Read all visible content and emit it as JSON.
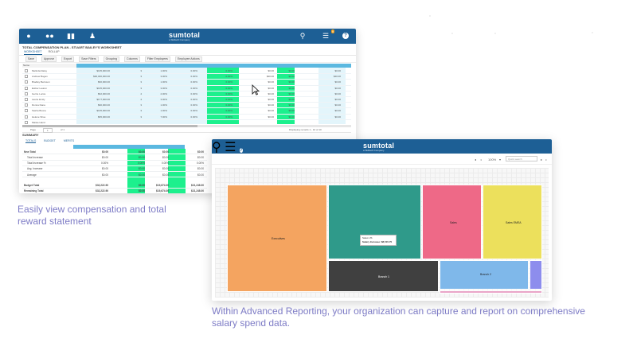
{
  "colors": {
    "brand_bar": "#1d5f95",
    "header_cyan": "#5bb8e0",
    "highlight_green": "#1cf08d",
    "caption": "#7e7cc6"
  },
  "worksheet": {
    "logo": "sumtotal",
    "logo_tagline": "a Skillsoft Company",
    "badge": "9",
    "nav_icons": [
      "person-icon",
      "group-icon",
      "books-icon",
      "person-gear-icon"
    ],
    "right_icons": [
      "search-icon",
      "messages-icon",
      "help-icon"
    ],
    "plan_title": "TOTAL COMPENSATION PLAN - STUART BAILEY'S WORKSHEET",
    "subtabs": [
      "WORKSHEET",
      "ROLLUP"
    ],
    "toolbar": [
      "Save",
      "Approve",
      "Export",
      "Save Filters",
      "Grouping",
      "Columns",
      "Filter Employees",
      "Employee Actions"
    ],
    "name_header": "Name",
    "rows": [
      {
        "name": "Melinda Daley",
        "salary": "$135,000.00",
        "a": "3",
        "b": "1.00%",
        "c": "0.00%",
        "d": "0.00%",
        "e": "$0.00",
        "f": "$0.00",
        "g": "$0.00"
      },
      {
        "name": "Andrew Bogan",
        "salary": "$90,000,000.00",
        "a": "3",
        "b": "3.00%",
        "c": "0.00%",
        "d": "0.00%",
        "e": "$40.00",
        "f": "$0.00",
        "g": "$40.00"
      },
      {
        "name": "Bradley Berisson",
        "salary": "$60,000.00",
        "a": "3",
        "b": "1.00%",
        "c": "0.00%",
        "d": "0.00%",
        "e": "$0.00",
        "f": "$0.00",
        "g": "$0.00"
      },
      {
        "name": "Esther Lauren",
        "salary": "$135,000.00",
        "a": "3",
        "b": "3.00%",
        "c": "0.00%",
        "d": "0.00%",
        "e": "$0.00",
        "f": "$0.00",
        "g": "$0.00"
      },
      {
        "name": "Gerrie Lucca",
        "salary": "$62,000.00",
        "a": "4",
        "b": "2.00%",
        "c": "0.00%",
        "d": "0.00%",
        "e": "$0.00",
        "f": "$0.00",
        "g": "$0.00"
      },
      {
        "name": "Laurie Emily",
        "salary": "$177,000.00",
        "a": "4",
        "b": "3.00%",
        "c": "0.00%",
        "d": "0.00%",
        "e": "$0.00",
        "f": "$0.00",
        "g": "$0.00"
      },
      {
        "name": "Ronna Dana",
        "salary": "$90,000.00",
        "a": "3",
        "b": "1.00%",
        "c": "0.00%",
        "d": "0.00%",
        "e": "$0.00",
        "f": "$0.00",
        "g": "$0.00"
      },
      {
        "name": "Sasha Boone",
        "salary": "$135,000.00",
        "a": "3",
        "b": "1.00%",
        "c": "0.00%",
        "d": "0.00%",
        "e": "$0.00",
        "f": "$0.00",
        "g": "$0.00"
      },
      {
        "name": "Helene Shoe",
        "salary": "$65,000.00",
        "a": "3",
        "b": "7.00%",
        "c": "0.00%",
        "d": "0.00%",
        "e": "$0.00",
        "f": "$0.00",
        "g": "$0.00"
      },
      {
        "name": "Maisie Hand",
        "salary": "",
        "a": "",
        "b": "",
        "c": "",
        "d": "",
        "e": "",
        "f": "",
        "g": ""
      }
    ],
    "pager": {
      "page_label": "Page",
      "page_value": "1",
      "of_label": "of 1",
      "summary": "Displaying records 1 - 10 of 10"
    },
    "summary_title": "SUMMARY",
    "summary_tabs": [
      "TOTALS",
      "BUDGET",
      "MERITS"
    ],
    "summary_rows": [
      {
        "label": "New Total",
        "v1": "$0.00",
        "v2": "$0.00",
        "v3": "$0.00",
        "v4": "$0.00"
      },
      {
        "label": "Total Increase",
        "v1": "$0.00",
        "v2": "$0.00",
        "v3": "$0.00",
        "v4": "$0.00"
      },
      {
        "label": "Total Increase %",
        "v1": "0.00%",
        "v2": "0.00%",
        "v3": "0.00%",
        "v4": "0.00%"
      },
      {
        "label": "Avg. Increase",
        "v1": "$0.00",
        "v2": "$0.00",
        "v3": "$0.00",
        "v4": "$0.00"
      },
      {
        "label": "Average",
        "v1": "$0.00",
        "v2": "$0.00",
        "v3": "$0.00",
        "v4": "$0.00"
      },
      {
        "label": "Budget Total",
        "v1": "$32,222.90",
        "v2": "$0.00",
        "v3": "$19,674.00",
        "v4": "$21,248.00"
      },
      {
        "label": "Remaining Total",
        "v1": "$32,222.90",
        "v2": "$0.00",
        "v3": "$19,674.00",
        "v4": "$21,248.00"
      }
    ]
  },
  "report": {
    "logo": "sumtotal",
    "logo_tagline": "a Skillsoft Company",
    "badge": "9",
    "zoom": "100%",
    "search_placeholder": "Quick search",
    "tooltip_title": "Sales US",
    "tooltip_value": "Salary Increase: $8,515.70",
    "tiles": [
      {
        "label": "Executives",
        "color": "#f4a460"
      },
      {
        "label": "",
        "color": "#2f9a8a"
      },
      {
        "label": "Sales",
        "color": "#ee6987"
      },
      {
        "label": "Sales EMEA",
        "color": "#ece05c"
      },
      {
        "label": "Branch 1",
        "color": "#404040"
      },
      {
        "label": "Branch 2",
        "color": "#7fb8ea"
      },
      {
        "label": "",
        "color": "#8d8ded"
      },
      {
        "label": "",
        "color": "#e9a5c8"
      }
    ]
  },
  "captions": {
    "left": "Easily view compensation and total reward statement",
    "right": "Within Advanced Reporting, your organization can capture and report on comprehensive salary spend data."
  }
}
